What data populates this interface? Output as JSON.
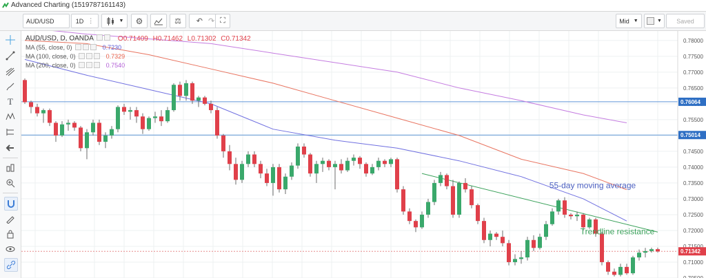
{
  "window": {
    "title": "Advanced Charting (1519787161143)"
  },
  "toolbar": {
    "symbol": "AUD/USD",
    "interval": "1D",
    "price_type": "Mid",
    "save_label": "Saved"
  },
  "legend": {
    "main": {
      "symbol": "AUD/USD, D, OANDA",
      "o": "O0.71409",
      "h": "H0.71462",
      "l": "L0.71302",
      "c": "C0.71342"
    },
    "ma": [
      {
        "label": "MA (55, close, 0)",
        "value": "0.7230",
        "color": "#5b5bd6"
      },
      {
        "label": "MA (100, close, 0)",
        "value": "0.7329",
        "color": "#e8604a"
      },
      {
        "label": "MA (200, close, 0)",
        "value": "0.7540",
        "color": "#b35fd6"
      }
    ]
  },
  "left_toolbar_icons": [
    "crosshair-icon",
    "trend-line-icon",
    "pitchfork-icon",
    "brush-icon",
    "text-icon",
    "pattern-icon",
    "measure-icon",
    "back-arrow-icon",
    "fib-icon",
    "zoom-in-icon",
    "magnet-icon",
    "lock-icon",
    "pencil-lock-icon",
    "eye-icon",
    "link-icon"
  ],
  "chart_data": {
    "type": "candlestick",
    "symbol": "AUD/USD",
    "ylim": [
      0.705,
      0.783
    ],
    "yticks": [
      "0.78000",
      "0.77500",
      "0.77000",
      "0.76500",
      "0.76000",
      "0.75500",
      "0.75000",
      "0.74500",
      "0.74000",
      "0.73500",
      "0.73000",
      "0.72500",
      "0.72000",
      "0.71500",
      "0.71000",
      "0.70500"
    ],
    "price_labels": [
      {
        "text": "0.76064",
        "value": 0.76064,
        "color": "#2e6fc4"
      },
      {
        "text": "0.75014",
        "value": 0.75014,
        "color": "#2e6fc4"
      },
      {
        "text": "0.71342",
        "value": 0.71342,
        "color": "#e0404a"
      }
    ],
    "horizontal_lines": [
      {
        "value": 0.76064,
        "color": "#5f95d6"
      },
      {
        "value": 0.75014,
        "color": "#5f95d6"
      },
      {
        "value": 0.71342,
        "color": "#e58a8a",
        "dashed": true
      }
    ],
    "candles": [
      {
        "o": 0.7675,
        "h": 0.768,
        "l": 0.76,
        "c": 0.7605
      },
      {
        "o": 0.7605,
        "h": 0.761,
        "l": 0.757,
        "c": 0.759
      },
      {
        "o": 0.759,
        "h": 0.76,
        "l": 0.756,
        "c": 0.757
      },
      {
        "o": 0.757,
        "h": 0.7585,
        "l": 0.754,
        "c": 0.758
      },
      {
        "o": 0.758,
        "h": 0.7585,
        "l": 0.753,
        "c": 0.754
      },
      {
        "o": 0.754,
        "h": 0.7545,
        "l": 0.748,
        "c": 0.75
      },
      {
        "o": 0.75,
        "h": 0.7545,
        "l": 0.7495,
        "c": 0.7535
      },
      {
        "o": 0.7535,
        "h": 0.755,
        "l": 0.7515,
        "c": 0.754
      },
      {
        "o": 0.754,
        "h": 0.7545,
        "l": 0.7515,
        "c": 0.7525
      },
      {
        "o": 0.7525,
        "h": 0.753,
        "l": 0.745,
        "c": 0.746
      },
      {
        "o": 0.746,
        "h": 0.752,
        "l": 0.7425,
        "c": 0.751
      },
      {
        "o": 0.751,
        "h": 0.755,
        "l": 0.75,
        "c": 0.754
      },
      {
        "o": 0.754,
        "h": 0.755,
        "l": 0.747,
        "c": 0.748
      },
      {
        "o": 0.748,
        "h": 0.751,
        "l": 0.746,
        "c": 0.75
      },
      {
        "o": 0.75,
        "h": 0.753,
        "l": 0.749,
        "c": 0.752
      },
      {
        "o": 0.752,
        "h": 0.7595,
        "l": 0.751,
        "c": 0.759
      },
      {
        "o": 0.759,
        "h": 0.76,
        "l": 0.7565,
        "c": 0.7575
      },
      {
        "o": 0.7575,
        "h": 0.759,
        "l": 0.755,
        "c": 0.758
      },
      {
        "o": 0.758,
        "h": 0.759,
        "l": 0.754,
        "c": 0.756
      },
      {
        "o": 0.756,
        "h": 0.757,
        "l": 0.7505,
        "c": 0.752
      },
      {
        "o": 0.752,
        "h": 0.756,
        "l": 0.7515,
        "c": 0.7555
      },
      {
        "o": 0.7555,
        "h": 0.7575,
        "l": 0.754,
        "c": 0.756
      },
      {
        "o": 0.756,
        "h": 0.758,
        "l": 0.753,
        "c": 0.7545
      },
      {
        "o": 0.7545,
        "h": 0.759,
        "l": 0.754,
        "c": 0.758
      },
      {
        "o": 0.758,
        "h": 0.7665,
        "l": 0.7575,
        "c": 0.766
      },
      {
        "o": 0.766,
        "h": 0.767,
        "l": 0.761,
        "c": 0.7625
      },
      {
        "o": 0.7625,
        "h": 0.7675,
        "l": 0.761,
        "c": 0.7665
      },
      {
        "o": 0.7665,
        "h": 0.767,
        "l": 0.76,
        "c": 0.761
      },
      {
        "o": 0.761,
        "h": 0.7625,
        "l": 0.759,
        "c": 0.762
      },
      {
        "o": 0.762,
        "h": 0.7625,
        "l": 0.7595,
        "c": 0.76
      },
      {
        "o": 0.76,
        "h": 0.761,
        "l": 0.757,
        "c": 0.758
      },
      {
        "o": 0.758,
        "h": 0.759,
        "l": 0.749,
        "c": 0.75
      },
      {
        "o": 0.75,
        "h": 0.7505,
        "l": 0.743,
        "c": 0.745
      },
      {
        "o": 0.745,
        "h": 0.747,
        "l": 0.739,
        "c": 0.741
      },
      {
        "o": 0.741,
        "h": 0.743,
        "l": 0.7345,
        "c": 0.736
      },
      {
        "o": 0.736,
        "h": 0.742,
        "l": 0.735,
        "c": 0.741
      },
      {
        "o": 0.741,
        "h": 0.745,
        "l": 0.74,
        "c": 0.744
      },
      {
        "o": 0.744,
        "h": 0.745,
        "l": 0.74,
        "c": 0.741
      },
      {
        "o": 0.741,
        "h": 0.742,
        "l": 0.7365,
        "c": 0.738
      },
      {
        "o": 0.738,
        "h": 0.7395,
        "l": 0.734,
        "c": 0.735
      },
      {
        "o": 0.735,
        "h": 0.741,
        "l": 0.731,
        "c": 0.74
      },
      {
        "o": 0.74,
        "h": 0.741,
        "l": 0.732,
        "c": 0.733
      },
      {
        "o": 0.733,
        "h": 0.738,
        "l": 0.7315,
        "c": 0.737
      },
      {
        "o": 0.737,
        "h": 0.7415,
        "l": 0.736,
        "c": 0.7405
      },
      {
        "o": 0.7405,
        "h": 0.7475,
        "l": 0.7395,
        "c": 0.7465
      },
      {
        "o": 0.7465,
        "h": 0.7475,
        "l": 0.743,
        "c": 0.744
      },
      {
        "o": 0.744,
        "h": 0.7445,
        "l": 0.737,
        "c": 0.738
      },
      {
        "o": 0.738,
        "h": 0.742,
        "l": 0.735,
        "c": 0.741
      },
      {
        "o": 0.741,
        "h": 0.743,
        "l": 0.7385,
        "c": 0.742
      },
      {
        "o": 0.742,
        "h": 0.7425,
        "l": 0.739,
        "c": 0.74
      },
      {
        "o": 0.74,
        "h": 0.742,
        "l": 0.733,
        "c": 0.741
      },
      {
        "o": 0.741,
        "h": 0.7425,
        "l": 0.738,
        "c": 0.739
      },
      {
        "o": 0.739,
        "h": 0.743,
        "l": 0.7385,
        "c": 0.742
      },
      {
        "o": 0.742,
        "h": 0.744,
        "l": 0.7405,
        "c": 0.743
      },
      {
        "o": 0.743,
        "h": 0.7435,
        "l": 0.7395,
        "c": 0.741
      },
      {
        "o": 0.741,
        "h": 0.7415,
        "l": 0.737,
        "c": 0.738
      },
      {
        "o": 0.738,
        "h": 0.741,
        "l": 0.7375,
        "c": 0.74
      },
      {
        "o": 0.74,
        "h": 0.743,
        "l": 0.739,
        "c": 0.742
      },
      {
        "o": 0.742,
        "h": 0.7425,
        "l": 0.74,
        "c": 0.741
      },
      {
        "o": 0.741,
        "h": 0.743,
        "l": 0.74,
        "c": 0.7425
      },
      {
        "o": 0.7425,
        "h": 0.743,
        "l": 0.732,
        "c": 0.733
      },
      {
        "o": 0.733,
        "h": 0.734,
        "l": 0.725,
        "c": 0.726
      },
      {
        "o": 0.726,
        "h": 0.727,
        "l": 0.722,
        "c": 0.723
      },
      {
        "o": 0.723,
        "h": 0.7235,
        "l": 0.7195,
        "c": 0.721
      },
      {
        "o": 0.721,
        "h": 0.726,
        "l": 0.7205,
        "c": 0.725
      },
      {
        "o": 0.725,
        "h": 0.73,
        "l": 0.724,
        "c": 0.729
      },
      {
        "o": 0.729,
        "h": 0.736,
        "l": 0.728,
        "c": 0.735
      },
      {
        "o": 0.735,
        "h": 0.7385,
        "l": 0.734,
        "c": 0.7375
      },
      {
        "o": 0.7375,
        "h": 0.738,
        "l": 0.733,
        "c": 0.734
      },
      {
        "o": 0.734,
        "h": 0.736,
        "l": 0.724,
        "c": 0.725
      },
      {
        "o": 0.725,
        "h": 0.7355,
        "l": 0.724,
        "c": 0.735
      },
      {
        "o": 0.735,
        "h": 0.7365,
        "l": 0.732,
        "c": 0.733
      },
      {
        "o": 0.733,
        "h": 0.734,
        "l": 0.727,
        "c": 0.728
      },
      {
        "o": 0.728,
        "h": 0.7285,
        "l": 0.722,
        "c": 0.723
      },
      {
        "o": 0.723,
        "h": 0.724,
        "l": 0.716,
        "c": 0.717
      },
      {
        "o": 0.717,
        "h": 0.72,
        "l": 0.715,
        "c": 0.719
      },
      {
        "o": 0.719,
        "h": 0.7195,
        "l": 0.717,
        "c": 0.718
      },
      {
        "o": 0.718,
        "h": 0.72,
        "l": 0.715,
        "c": 0.716
      },
      {
        "o": 0.716,
        "h": 0.717,
        "l": 0.709,
        "c": 0.71
      },
      {
        "o": 0.71,
        "h": 0.7125,
        "l": 0.709,
        "c": 0.711
      },
      {
        "o": 0.711,
        "h": 0.7135,
        "l": 0.7095,
        "c": 0.7115
      },
      {
        "o": 0.7115,
        "h": 0.718,
        "l": 0.7105,
        "c": 0.717
      },
      {
        "o": 0.717,
        "h": 0.7185,
        "l": 0.7135,
        "c": 0.7145
      },
      {
        "o": 0.7145,
        "h": 0.719,
        "l": 0.714,
        "c": 0.718
      },
      {
        "o": 0.718,
        "h": 0.723,
        "l": 0.717,
        "c": 0.722
      },
      {
        "o": 0.722,
        "h": 0.727,
        "l": 0.7215,
        "c": 0.726
      },
      {
        "o": 0.726,
        "h": 0.73,
        "l": 0.725,
        "c": 0.7295
      },
      {
        "o": 0.7295,
        "h": 0.7305,
        "l": 0.724,
        "c": 0.725
      },
      {
        "o": 0.725,
        "h": 0.7255,
        "l": 0.7235,
        "c": 0.7245
      },
      {
        "o": 0.7245,
        "h": 0.726,
        "l": 0.723,
        "c": 0.725
      },
      {
        "o": 0.725,
        "h": 0.7255,
        "l": 0.72,
        "c": 0.721
      },
      {
        "o": 0.721,
        "h": 0.724,
        "l": 0.7205,
        "c": 0.7235
      },
      {
        "o": 0.7235,
        "h": 0.724,
        "l": 0.718,
        "c": 0.719
      },
      {
        "o": 0.719,
        "h": 0.7195,
        "l": 0.709,
        "c": 0.71
      },
      {
        "o": 0.71,
        "h": 0.7105,
        "l": 0.706,
        "c": 0.707
      },
      {
        "o": 0.707,
        "h": 0.708,
        "l": 0.7055,
        "c": 0.706
      },
      {
        "o": 0.706,
        "h": 0.7095,
        "l": 0.7055,
        "c": 0.7085
      },
      {
        "o": 0.7085,
        "h": 0.7095,
        "l": 0.706,
        "c": 0.7065
      },
      {
        "o": 0.7065,
        "h": 0.712,
        "l": 0.706,
        "c": 0.7115
      },
      {
        "o": 0.7115,
        "h": 0.714,
        "l": 0.7105,
        "c": 0.713
      },
      {
        "o": 0.713,
        "h": 0.7145,
        "l": 0.7115,
        "c": 0.7135
      },
      {
        "o": 0.7135,
        "h": 0.7146,
        "l": 0.713,
        "c": 0.7141
      },
      {
        "o": 0.7141,
        "h": 0.7146,
        "l": 0.713,
        "c": 0.7134
      }
    ],
    "moving_averages": [
      {
        "name": "MA (55, close, 0)",
        "color": "#6f6fe0",
        "points": [
          [
            0,
            0.774
          ],
          [
            10,
            0.769
          ],
          [
            20,
            0.7645
          ],
          [
            30,
            0.76
          ],
          [
            40,
            0.752
          ],
          [
            50,
            0.7485
          ],
          [
            60,
            0.746
          ],
          [
            70,
            0.742
          ],
          [
            80,
            0.737
          ],
          [
            90,
            0.73
          ],
          [
            97,
            0.723
          ]
        ]
      },
      {
        "name": "MA (100, close, 0)",
        "color": "#e8735f",
        "points": [
          [
            0,
            0.78
          ],
          [
            10,
            0.779
          ],
          [
            20,
            0.7755
          ],
          [
            30,
            0.771
          ],
          [
            40,
            0.7665
          ],
          [
            50,
            0.761
          ],
          [
            60,
            0.7555
          ],
          [
            70,
            0.75
          ],
          [
            80,
            0.7425
          ],
          [
            90,
            0.738
          ],
          [
            97,
            0.7329
          ]
        ]
      },
      {
        "name": "MA (200, close, 0)",
        "color": "#c47be0",
        "points": [
          [
            0,
            0.784
          ],
          [
            10,
            0.782
          ],
          [
            20,
            0.7805
          ],
          [
            30,
            0.779
          ],
          [
            40,
            0.776
          ],
          [
            50,
            0.773
          ],
          [
            60,
            0.77
          ],
          [
            70,
            0.765
          ],
          [
            80,
            0.761
          ],
          [
            90,
            0.7565
          ],
          [
            97,
            0.754
          ]
        ]
      }
    ],
    "trendline": {
      "color": "#3aa15a",
      "from": [
        64,
        0.738
      ],
      "to": [
        102,
        0.7195
      ]
    },
    "annotations": [
      {
        "text": "55-day moving average",
        "color": "#4a5fc0",
        "x": 91.5,
        "y": 0.7333
      },
      {
        "text": "Trendline resistance",
        "color": "#3aa15a",
        "x": 95.5,
        "y": 0.7188
      }
    ]
  }
}
